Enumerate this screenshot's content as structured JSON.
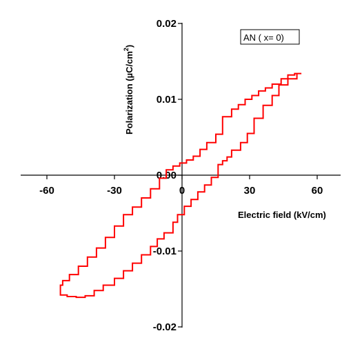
{
  "chart_data": {
    "type": "line",
    "title": "",
    "xlabel": "Electric field (kV/cm)",
    "ylabel": "Polarization (µC/cm²)",
    "ylabel_main": "Polarization (µC/cm",
    "ylabel_sup": "2",
    "ylabel_end": ")",
    "xlim": [
      -70,
      70
    ],
    "ylim": [
      -0.02,
      0.02
    ],
    "x_ticks": [
      -60,
      -30,
      0,
      30,
      60
    ],
    "x_tick_labels": [
      "-60",
      "-30",
      "0",
      "30",
      "60"
    ],
    "y_ticks": [
      -0.02,
      -0.01,
      0.0,
      0.01,
      0.02
    ],
    "y_tick_labels": [
      "-0.02",
      "-0.01",
      "0.00",
      "0.01",
      "0.02"
    ],
    "grid": false,
    "legend_position": "top-right",
    "series_color": "#ff0000",
    "series": [
      {
        "name": "AN ( x= 0)",
        "x": [
          53,
          51,
          47,
          43,
          40,
          36,
          32,
          29,
          26,
          22,
          20,
          18,
          16,
          16,
          13,
          10,
          7,
          4,
          1,
          -2,
          -4,
          -8,
          -11,
          -14,
          -18,
          -22,
          -26,
          -30,
          -35,
          -39,
          -43,
          -47,
          -51,
          -54,
          -54,
          -53,
          -50,
          -46,
          -42,
          -38,
          -34,
          -30,
          -26,
          -22,
          -18,
          -14,
          -10,
          -7,
          -4,
          -1,
          2,
          5,
          8,
          11,
          15,
          18,
          22,
          25,
          28,
          31,
          34,
          37,
          40,
          44,
          47,
          50,
          53
        ],
        "y": [
          0.0134,
          0.0127,
          0.0119,
          0.0105,
          0.0092,
          0.0075,
          0.0055,
          0.0043,
          0.0033,
          0.0024,
          0.0019,
          0.0014,
          0.0004,
          -0.0003,
          -0.0013,
          -0.0022,
          -0.0032,
          -0.0041,
          -0.0052,
          -0.0062,
          -0.0076,
          -0.0084,
          -0.0094,
          -0.0105,
          -0.0116,
          -0.0126,
          -0.0136,
          -0.0145,
          -0.0152,
          -0.0159,
          -0.0161,
          -0.016,
          -0.0158,
          -0.0153,
          -0.0145,
          -0.0139,
          -0.0131,
          -0.012,
          -0.0108,
          -0.0096,
          -0.0082,
          -0.0067,
          -0.0052,
          -0.0042,
          -0.003,
          -0.0018,
          -0.0004,
          0.0007,
          0.0012,
          0.0016,
          0.002,
          0.0025,
          0.0034,
          0.0043,
          0.0054,
          0.0077,
          0.0087,
          0.0093,
          0.01,
          0.0105,
          0.0111,
          0.0115,
          0.012,
          0.0127,
          0.0132,
          0.0134,
          0.0134
        ]
      }
    ]
  }
}
